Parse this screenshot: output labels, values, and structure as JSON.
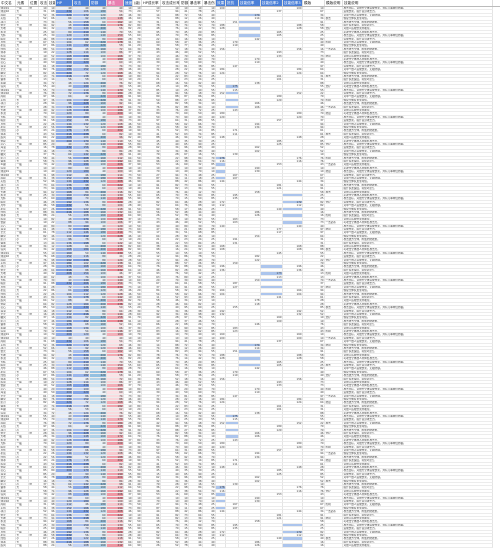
{
  "headers": [
    {
      "label": "中文名",
      "w": 16,
      "style": ""
    },
    {
      "label": "元素",
      "w": 13,
      "style": ""
    },
    {
      "label": "位置",
      "w": 10,
      "style": ""
    },
    {
      "label": "攻击属性",
      "w": 9,
      "style": ""
    },
    {
      "label": "技能",
      "w": 8,
      "style": ""
    },
    {
      "label": "HP",
      "w": 17,
      "style": "blue"
    },
    {
      "label": "攻击",
      "w": 17,
      "style": "blue"
    },
    {
      "label": "防御",
      "w": 17,
      "style": "blue"
    },
    {
      "label": "暴击",
      "w": 17,
      "style": "pink"
    },
    {
      "label": "速度",
      "w": 9,
      "style": "blue"
    },
    {
      "label": "(级)",
      "w": 9,
      "style": ""
    },
    {
      "label": "HP成长率",
      "w": 19,
      "style": ""
    },
    {
      "label": "攻击成长率",
      "w": 19,
      "style": ""
    },
    {
      "label": "防御",
      "w": 9,
      "style": ""
    },
    {
      "label": "暴击率",
      "w": 14,
      "style": ""
    },
    {
      "label": "暴击伤害",
      "w": 13,
      "style": ""
    },
    {
      "label": "效果",
      "w": 10,
      "style": "blue"
    },
    {
      "label": "抵抗",
      "w": 13,
      "style": "blue"
    },
    {
      "label": "技能倍率",
      "w": 22,
      "style": "blue"
    },
    {
      "label": "技能倍率2",
      "w": 22,
      "style": "blue"
    },
    {
      "label": "技能倍率3",
      "w": 20,
      "style": "blue"
    },
    {
      "label": "模版",
      "w": 22,
      "style": ""
    },
    {
      "label": "模版说明",
      "w": 18,
      "style": ""
    },
    {
      "label": "技能说明",
      "w": 150,
      "style": ""
    }
  ],
  "rows_seed": {
    "names": [
      "测试01",
      "测试02",
      "风斩",
      "火焰",
      "冰刃",
      "雷光",
      "大地",
      "水流",
      "光辉",
      "暗影",
      "月华",
      "星辰",
      "烈焰",
      "寒冰",
      "疾风",
      "雷霆",
      "岩石",
      "海浪",
      "圣光",
      "幽冥",
      "影刃",
      "霜寒",
      "炎魔",
      "狂风"
    ],
    "elements": [
      "一般",
      "大",
      "一般",
      "大",
      "小",
      "大",
      "一般",
      "大"
    ],
    "skill_text": [
      "攻击目标，对敌方全体造成伤害，并有几率降低防御。",
      "造成伤害，提升自身攻击力。",
      "对单个敌人造成伤害，无视防御。",
      "恢复全体队友生命值。",
      "攻击敌方全体，附加灼烧效果。",
      "提升队友速度，持续2回合。",
      "对敌人造成伤害并眩晕。",
      "可攻击全体敌人并降低攻击力。"
    ],
    "notes": [
      "",
      "",
      "",
      "暴击",
      "",
      "",
      "治疗",
      "",
      "",
      "",
      "控制",
      "",
      "一击必杀",
      "",
      "增益",
      "",
      ""
    ]
  }
}
